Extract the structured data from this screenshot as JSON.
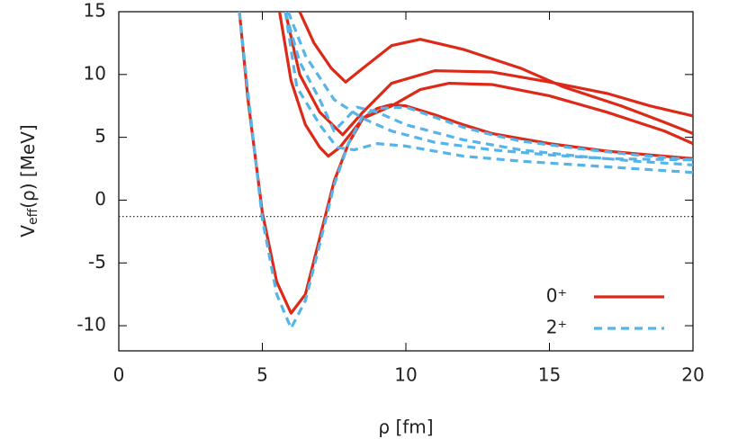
{
  "chart_data": {
    "type": "line",
    "xlabel": "ρ [fm]",
    "ylabel": {
      "main": "V",
      "sub": "eff",
      "rest": "(ρ) [MeV]"
    },
    "xlim": [
      0,
      20
    ],
    "ylim": [
      -12,
      15
    ],
    "xticks": [
      0,
      5,
      10,
      15,
      20
    ],
    "yticks": [
      -10,
      -5,
      0,
      5,
      10,
      15
    ],
    "hline": -1.3,
    "legend": "lower right",
    "series": [
      {
        "name": "0⁺",
        "color": "#dd2a18",
        "dashed": false,
        "curves": [
          {
            "x": [
              4.2,
              4.5,
              5,
              5.5,
              6,
              6.5,
              7,
              7.5,
              8,
              8.5,
              9,
              9.5,
              10,
              11,
              12,
              13,
              14,
              15,
              16,
              17,
              18,
              19,
              20
            ],
            "values": [
              15,
              8,
              -1,
              -6.5,
              -9,
              -7.5,
              -3,
              1.5,
              4.5,
              6.5,
              7.3,
              7.6,
              7.5,
              6.8,
              6.0,
              5.3,
              4.9,
              4.5,
              4.2,
              3.9,
              3.7,
              3.5,
              3.3
            ]
          },
          {
            "x": [
              5.6,
              6,
              6.5,
              7,
              7.3,
              7.7,
              8.5,
              9.5,
              10.5,
              11.5,
              13,
              15,
              17,
              19,
              20
            ],
            "values": [
              15,
              9.5,
              6,
              4.2,
              3.5,
              4.2,
              6.5,
              7.5,
              8.8,
              9.3,
              9.2,
              8.3,
              7,
              5.5,
              4.5
            ]
          },
          {
            "x": [
              5.8,
              6.3,
              7,
              7.8,
              8.5,
              9.5,
              11,
              13,
              15,
              17,
              18.5,
              20
            ],
            "values": [
              15,
              10,
              7,
              5.2,
              7,
              9.3,
              10.3,
              10.2,
              9.4,
              8.5,
              7.5,
              6.7
            ]
          },
          {
            "x": [
              6.3,
              6.8,
              7.4,
              7.9,
              8.5,
              9.5,
              10.5,
              12,
              14,
              14.5,
              15.5,
              17.5,
              19,
              20
            ],
            "values": [
              15,
              12.5,
              10.5,
              9.4,
              10.5,
              12.3,
              12.8,
              12,
              10.5,
              10,
              9,
              7.5,
              6.2,
              5.3
            ]
          }
        ]
      },
      {
        "name": "2⁺",
        "color": "#56b4e9",
        "dashed": true,
        "curves": [
          {
            "x": [
              4.2,
              4.5,
              5,
              5.5,
              6,
              6.5,
              7,
              7.5,
              8,
              8.5,
              9,
              10,
              11,
              12,
              13,
              14,
              16,
              18,
              20
            ],
            "values": [
              15,
              8.5,
              -1.5,
              -7.5,
              -10.2,
              -8,
              -3.5,
              1.2,
              4.5,
              6.7,
              7.3,
              7.4,
              6.6,
              5.8,
              5.2,
              4.7,
              4.1,
              3.6,
              3.2
            ]
          },
          {
            "x": [
              5.8,
              6.2,
              7,
              7.6,
              8.2,
              9,
              10,
              12,
              14,
              16,
              18,
              20
            ],
            "values": [
              15,
              9,
              6,
              4.2,
              4,
              4.5,
              4.3,
              3.5,
              3.1,
              2.8,
              2.5,
              2.2
            ]
          },
          {
            "x": [
              5.8,
              6.3,
              7,
              7.5,
              8.3,
              9,
              10,
              12,
              14,
              16,
              18,
              20
            ],
            "values": [
              15,
              11,
              8,
              5.5,
              7.4,
              7,
              6,
              4.8,
              4,
              3.5,
              3.1,
              2.8
            ]
          },
          {
            "x": [
              5.9,
              6.5,
              7.5,
              8.5,
              9.5,
              11,
              13,
              15,
              17,
              20
            ],
            "values": [
              15,
              11.5,
              8,
              6.5,
              5.5,
              4.6,
              4,
              3.6,
              3.3,
              3.2
            ]
          }
        ]
      }
    ]
  }
}
